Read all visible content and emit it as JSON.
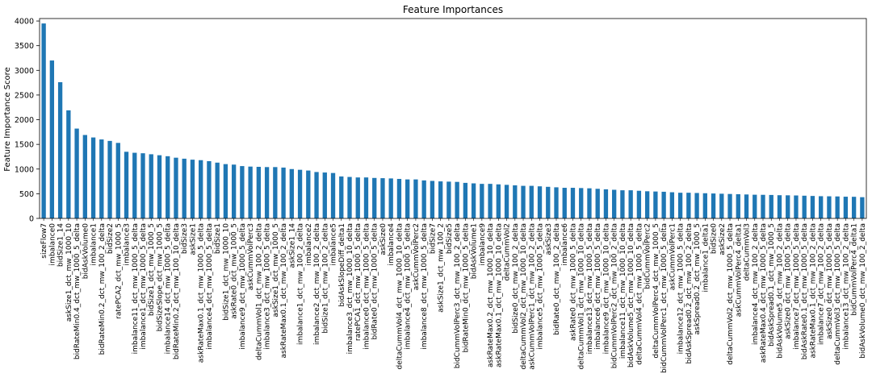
{
  "chart_data": {
    "type": "bar",
    "title": "Feature Importances",
    "xlabel": "",
    "ylabel": "Feature Importance Score",
    "ylim": [
      0,
      4050
    ],
    "yticks": [
      0,
      500,
      1000,
      1500,
      2000,
      2500,
      3000,
      3500,
      4000
    ],
    "bar_color": "#1f77b4",
    "grid": false,
    "legend": "none",
    "categories": [
      "sizeFlow7",
      "imbalance0",
      "bidSize1_14",
      "askSize1_dct_mw_1000_10",
      "bidRateMin0.4_dct_mw_1000_5_delta",
      "bidAskVolume0",
      "imbalance1",
      "bidRateMin0.2_dct_mw_100_2_delta",
      "bidSize2",
      "ratePCA2_dct_mw_1000_5",
      "imbalance3",
      "imbalance11_dct_mw_1000_5_delta",
      "imbalance1_dct_mw_1000_5_delta",
      "bidSize1_dct_mw_1000_5",
      "bidSizeSlope_dct_mw_1000_5",
      "imbalance14_dct_mw_1000_5_delta",
      "bidRateMin0.2_dct_mw_100_10_delta",
      "bidSize3",
      "askSize1",
      "askRateMax0.1_dct_mw_1000_5_delta",
      "imbalance4_dct_mw_1000_5_delta",
      "bidSize1",
      "bidSize1_dct_mw_1000_10",
      "askRate0_dct_mw_1000_5",
      "imbalance9_dct_mw_1000_5_delta",
      "askCummVolPerc3",
      "deltaCummVol1_dct_mw_100_2_delta",
      "imbalance3_dct_mw_1000_5_delta",
      "askSize1_dct_mw_1000_5",
      "askRateMax0.1_dct_mw_100_2_delta",
      "askSize1_14",
      "imbalance1_dct_mw_100_2_delta",
      "imbalance2",
      "imbalance2_dct_mw_100_2_delta",
      "bidSize1_dct_mw_100_2_delta",
      "imbalance5",
      "bidAskSlopeDiff_delta1",
      "imbalance3_dct_mw_1000_10_delta",
      "ratePCA1_dct_mw_1000_5_delta",
      "imbalance0_dct_mw_1000_5_delta",
      "bidRate0_dct_mw_1000_5_delta",
      "askSize0",
      "imbalance4",
      "deltaCummVol4_dct_mw_1000_10_delta",
      "imbalance4_dct_mw_1000_5_delta",
      "askCummVolPerc2",
      "imbalance8_dct_mw_1000_5_delta",
      "bidSize7",
      "askSize1_dct_mw_100_2",
      "bidSize5",
      "bidCummVolPerc3_dct_mw_100_2_delta",
      "bidRateMin0_dct_mw_1000_5_delta",
      "bidAskVolume1",
      "imbalance9",
      "askRateMax0.2_dct_mw_1000_10_delta",
      "askRateMax0.1_dct_mw_1000_10_delta",
      "deltaCummVol2",
      "bidSize0_dct_mw_100_2_delta",
      "deltaCummVol2_dct_mw_1000_10_delta",
      "askCummVolPerc1_dct_mw_100_2_delta",
      "imbalance5_dct_mw_1000_5_delta",
      "askSize3",
      "bidRate0_dct_mw_100_2_delta",
      "imbalance6",
      "askRate0_dct_mw_1000_5_delta",
      "deltaCummVol1_dct_mw_1000_10_delta",
      "imbalance13_dct_mw_1000_5_delta",
      "imbalance6_dct_mw_1000_5_delta",
      "imbalance9_dct_mw_1000_10_delta",
      "bidCummVolPerc2_dct_mw_100_2_delta",
      "imbalance11_dct_mw_1000_10_delta",
      "bidAskVolume5_dct_mw_1000_10_delta",
      "deltaCummVol4_dct_mw_1000_5_delta",
      "bidCummVolPerc2",
      "deltaCummVolPerc4_dct_mw_1000_5",
      "bidCummVolPerc1_dct_mw_1000_5_delta",
      "askCummVolPerc1",
      "imbalance12_dct_mw_1000_5_delta",
      "bidAskSpread0.2_dct_mw_100_2_delta",
      "askSpread0.2_dct_mw_1000_5",
      "imbalance1_delta1",
      "bidSize0",
      "askSize2",
      "deltaCummVol2_dct_mw_1000_5_delta",
      "askCummVolPerc4_delta1",
      "deltaCummVol3",
      "imbalance4_dct_mw_100_2_delta",
      "askRateMax0.4_dct_mw_1000_5_delta",
      "bidAskSpread0.1_dct_mw_1000_5",
      "bidAskVolume5_dct_mw_100_2_delta",
      "askSize0_dct_mw_1000_5_delta",
      "imbalance7_dct_mw_1000_5_delta",
      "bidAskRate0.1_dct_mw_1000_5_delta",
      "askRateMax0.1_dct_mw_100_2_delta",
      "imbalance7_dct_mw_100_2_delta",
      "askSize0_dct_mw_1000_5_delta",
      "deltaCummVol3_dct_mw_1000_5_delta",
      "imbalance13_dct_mw_100_2_delta",
      "bidCummVolPerc4_delta1",
      "bidAskVolume0_dct_mw_100_2_delta"
    ],
    "values": [
      3950,
      3200,
      2760,
      2190,
      1820,
      1690,
      1640,
      1600,
      1570,
      1530,
      1350,
      1330,
      1320,
      1300,
      1280,
      1260,
      1230,
      1210,
      1190,
      1180,
      1160,
      1130,
      1100,
      1090,
      1060,
      1050,
      1045,
      1040,
      1040,
      1030,
      1000,
      985,
      970,
      940,
      930,
      920,
      850,
      840,
      830,
      830,
      820,
      815,
      810,
      800,
      790,
      790,
      770,
      760,
      750,
      745,
      740,
      720,
      710,
      700,
      700,
      690,
      680,
      670,
      660,
      660,
      650,
      640,
      630,
      620,
      620,
      615,
      610,
      600,
      590,
      580,
      570,
      570,
      560,
      550,
      545,
      540,
      530,
      520,
      520,
      515,
      510,
      505,
      500,
      495,
      490,
      485,
      480,
      478,
      475,
      470,
      468,
      465,
      460,
      455,
      450,
      448,
      445,
      440,
      438,
      430
    ]
  }
}
